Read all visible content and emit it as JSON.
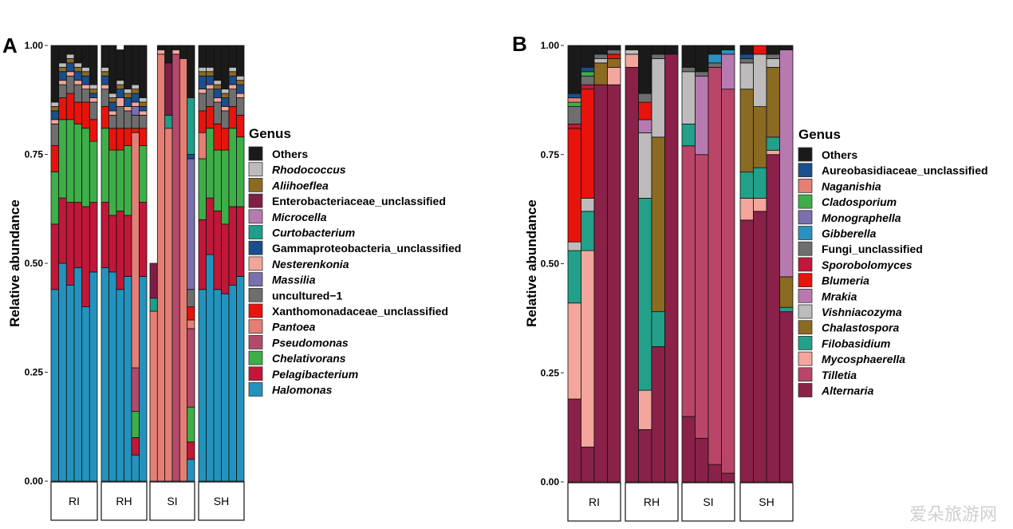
{
  "watermark": "爱朵旅游网",
  "chart_data": [
    {
      "panel": "A",
      "type": "bar",
      "stacked": true,
      "ylabel": "Relative abundance",
      "xlabel": "",
      "ylim": [
        0,
        1
      ],
      "yticks": [
        "0.00",
        "0.25",
        "0.50",
        "0.75",
        "1.00"
      ],
      "legend_title": "Genus",
      "legend_placement": "right",
      "groups": [
        "RI",
        "RH",
        "SI",
        "SH"
      ],
      "bars_per_group": 6,
      "series": [
        {
          "name": "Halomonas",
          "italic": true,
          "color": "#2393BE",
          "values": [
            0.44,
            0.5,
            0.45,
            0.49,
            0.4,
            0.48,
            0.49,
            0.48,
            0.44,
            0.47,
            0.06,
            0.47,
            0.0,
            0.0,
            0.0,
            0.0,
            0.0,
            0.05,
            0.44,
            0.52,
            0.44,
            0.43,
            0.45,
            0.47
          ]
        },
        {
          "name": "Pelagibacterium",
          "italic": true,
          "color": "#C11739",
          "values": [
            0.15,
            0.15,
            0.19,
            0.15,
            0.23,
            0.16,
            0.15,
            0.13,
            0.18,
            0.14,
            0.04,
            0.17,
            0.0,
            0.0,
            0.0,
            0.0,
            0.0,
            0.04,
            0.16,
            0.13,
            0.18,
            0.16,
            0.18,
            0.16
          ]
        },
        {
          "name": "Chelativorans",
          "italic": true,
          "color": "#3EAE49",
          "values": [
            0.12,
            0.18,
            0.19,
            0.18,
            0.18,
            0.14,
            0.17,
            0.15,
            0.14,
            0.16,
            0.06,
            0.13,
            0.0,
            0.0,
            0.0,
            0.0,
            0.0,
            0.08,
            0.14,
            0.16,
            0.14,
            0.17,
            0.18,
            0.16
          ]
        },
        {
          "name": "Pseudomonas",
          "italic": true,
          "color": "#B24A6C",
          "values": [
            0.0,
            0.0,
            0.0,
            0.0,
            0.0,
            0.0,
            0.0,
            0.0,
            0.0,
            0.0,
            0.1,
            0.0,
            0.0,
            0.0,
            0.0,
            0.98,
            0.0,
            0.18,
            0.0,
            0.0,
            0.0,
            0.0,
            0.0,
            0.0
          ]
        },
        {
          "name": "Pantoea",
          "italic": true,
          "color": "#E57E74",
          "values": [
            0.0,
            0.0,
            0.0,
            0.0,
            0.0,
            0.0,
            0.0,
            0.0,
            0.0,
            0.0,
            0.54,
            0.0,
            0.39,
            0.98,
            0.81,
            0.0,
            0.97,
            0.02,
            0.06,
            0.0,
            0.0,
            0.0,
            0.0,
            0.0
          ]
        },
        {
          "name": "Xanthomonadaceae_unclassified",
          "italic": false,
          "color": "#E8130C",
          "values": [
            0.06,
            0.05,
            0.06,
            0.05,
            0.06,
            0.05,
            0.05,
            0.05,
            0.05,
            0.04,
            0.01,
            0.04,
            0.0,
            0.0,
            0.0,
            0.0,
            0.0,
            0.03,
            0.05,
            0.05,
            0.06,
            0.05,
            0.05,
            0.05
          ]
        },
        {
          "name": "uncultured−1",
          "italic": false,
          "color": "#6E6E6E",
          "values": [
            0.05,
            0.03,
            0.04,
            0.04,
            0.03,
            0.04,
            0.04,
            0.03,
            0.05,
            0.04,
            0.03,
            0.03,
            0.0,
            0.0,
            0.0,
            0.0,
            0.0,
            0.04,
            0.04,
            0.04,
            0.05,
            0.04,
            0.04,
            0.04
          ]
        },
        {
          "name": "Massilia",
          "italic": true,
          "color": "#7A6FAF",
          "values": [
            0.0,
            0.0,
            0.0,
            0.0,
            0.0,
            0.0,
            0.0,
            0.0,
            0.0,
            0.0,
            0.02,
            0.0,
            0.0,
            0.0,
            0.0,
            0.0,
            0.0,
            0.3,
            0.0,
            0.0,
            0.0,
            0.0,
            0.0,
            0.0
          ]
        },
        {
          "name": "Nesterenkonia",
          "italic": true,
          "color": "#F2A69A",
          "values": [
            0.01,
            0.01,
            0.01,
            0.01,
            0.01,
            0.01,
            0.01,
            0.01,
            0.02,
            0.01,
            0.01,
            0.01,
            0.0,
            0.01,
            0.0,
            0.01,
            0.0,
            0.0,
            0.01,
            0.01,
            0.01,
            0.01,
            0.01,
            0.01
          ]
        },
        {
          "name": "Gammaproteobacteria_unclassified",
          "italic": false,
          "color": "#1A4E8C",
          "values": [
            0.02,
            0.02,
            0.02,
            0.02,
            0.02,
            0.01,
            0.02,
            0.02,
            0.02,
            0.02,
            0.02,
            0.01,
            0.0,
            0.0,
            0.0,
            0.0,
            0.0,
            0.01,
            0.03,
            0.02,
            0.02,
            0.02,
            0.02,
            0.02
          ]
        },
        {
          "name": "Curtobacterium",
          "italic": true,
          "color": "#1F9E8A",
          "values": [
            0.0,
            0.0,
            0.0,
            0.0,
            0.0,
            0.0,
            0.0,
            0.0,
            0.0,
            0.0,
            0.0,
            0.0,
            0.03,
            0.0,
            0.03,
            0.0,
            0.0,
            0.13,
            0.0,
            0.0,
            0.0,
            0.0,
            0.0,
            0.0
          ]
        },
        {
          "name": "Microcella",
          "italic": true,
          "color": "#B77AB0",
          "values": [
            0.0,
            0.0,
            0.0,
            0.0,
            0.0,
            0.0,
            0.0,
            0.0,
            0.0,
            0.0,
            0.0,
            0.0,
            0.0,
            0.0,
            0.0,
            0.0,
            0.0,
            0.0,
            0.0,
            0.0,
            0.0,
            0.0,
            0.0,
            0.0
          ]
        },
        {
          "name": "Enterobacteriaceae_unclassified",
          "italic": false,
          "color": "#7F1F46",
          "values": [
            0.0,
            0.0,
            0.0,
            0.0,
            0.0,
            0.0,
            0.0,
            0.0,
            0.0,
            0.0,
            0.0,
            0.0,
            0.08,
            0.0,
            0.12,
            0.0,
            0.0,
            0.0,
            0.0,
            0.0,
            0.0,
            0.0,
            0.0,
            0.0
          ]
        },
        {
          "name": "Aliihoeflea",
          "italic": true,
          "color": "#8B6A22",
          "values": [
            0.01,
            0.01,
            0.01,
            0.01,
            0.01,
            0.01,
            0.01,
            0.01,
            0.01,
            0.01,
            0.01,
            0.01,
            0.0,
            0.0,
            0.0,
            0.0,
            0.0,
            0.0,
            0.01,
            0.01,
            0.01,
            0.01,
            0.01,
            0.01
          ]
        },
        {
          "name": "Rhodococcus",
          "italic": true,
          "color": "#BDBBBC",
          "values": [
            0.01,
            0.01,
            0.01,
            0.01,
            0.01,
            0.01,
            0.01,
            0.01,
            0.01,
            0.01,
            0.01,
            0.01,
            0.0,
            0.0,
            0.0,
            0.0,
            0.0,
            0.0,
            0.01,
            0.01,
            0.01,
            0.01,
            0.01,
            0.01
          ]
        },
        {
          "name": "Others",
          "italic": false,
          "color": "#1A1A1A",
          "values": [
            0.13,
            0.04,
            0.02,
            0.09,
            0.05,
            0.09,
            0.07,
            0.11,
            0.07,
            0.1,
            0.09,
            0.12,
            0.0,
            0.01,
            0.04,
            0.01,
            0.03,
            0.12,
            0.05,
            0.05,
            0.08,
            0.1,
            0.05,
            0.07
          ]
        }
      ]
    },
    {
      "panel": "B",
      "type": "bar",
      "stacked": true,
      "ylabel": "Relative abundance",
      "xlabel": "",
      "ylim": [
        0,
        1
      ],
      "yticks": [
        "0.00",
        "0.25",
        "0.50",
        "0.75",
        "1.00"
      ],
      "legend_title": "Genus",
      "legend_placement": "right",
      "groups": [
        "RI",
        "RH",
        "SI",
        "SH"
      ],
      "bars_per_group": 4,
      "series": [
        {
          "name": "Alternaria",
          "italic": true,
          "color": "#8A2148",
          "values": [
            0.19,
            0.08,
            0.91,
            0.91,
            0.95,
            0.12,
            0.31,
            0.98,
            0.15,
            0.1,
            0.04,
            0.02,
            0.6,
            0.62,
            0.75,
            0.39
          ]
        },
        {
          "name": "Tilletia",
          "italic": true,
          "color": "#B94668",
          "values": [
            0.0,
            0.0,
            0.0,
            0.0,
            0.0,
            0.0,
            0.0,
            0.0,
            0.62,
            0.65,
            0.91,
            0.88,
            0.0,
            0.0,
            0.0,
            0.0
          ]
        },
        {
          "name": "Mycosphaerella",
          "italic": true,
          "color": "#F3A69C",
          "values": [
            0.22,
            0.45,
            0.0,
            0.04,
            0.03,
            0.09,
            0.0,
            0.0,
            0.0,
            0.0,
            0.0,
            0.0,
            0.05,
            0.03,
            0.01,
            0.0
          ]
        },
        {
          "name": "Filobasidium",
          "italic": true,
          "color": "#23A089",
          "values": [
            0.12,
            0.09,
            0.0,
            0.0,
            0.0,
            0.44,
            0.08,
            0.0,
            0.05,
            0.0,
            0.0,
            0.0,
            0.06,
            0.07,
            0.03,
            0.01
          ]
        },
        {
          "name": "Chalastospora",
          "italic": true,
          "color": "#8B6A22",
          "values": [
            0.0,
            0.0,
            0.05,
            0.02,
            0.0,
            0.0,
            0.4,
            0.0,
            0.0,
            0.0,
            0.0,
            0.0,
            0.19,
            0.14,
            0.16,
            0.07
          ]
        },
        {
          "name": "Vishniacozyma",
          "italic": true,
          "color": "#BDBBBC",
          "values": [
            0.02,
            0.03,
            0.01,
            0.0,
            0.01,
            0.15,
            0.18,
            0.0,
            0.12,
            0.0,
            0.0,
            0.0,
            0.06,
            0.12,
            0.02,
            0.0
          ]
        },
        {
          "name": "Mrakia",
          "italic": true,
          "color": "#B77AB0",
          "values": [
            0.0,
            0.0,
            0.0,
            0.0,
            0.0,
            0.03,
            0.0,
            0.0,
            0.0,
            0.18,
            0.0,
            0.08,
            0.0,
            0.0,
            0.0,
            0.52
          ]
        },
        {
          "name": "Blumeria",
          "italic": true,
          "color": "#E8130C",
          "values": [
            0.26,
            0.25,
            0.0,
            0.01,
            0.0,
            0.04,
            0.0,
            0.0,
            0.0,
            0.0,
            0.0,
            0.0,
            0.0,
            0.03,
            0.0,
            0.0
          ]
        },
        {
          "name": "Sporobolomyces",
          "italic": true,
          "color": "#C11739",
          "values": [
            0.01,
            0.01,
            0.0,
            0.0,
            0.0,
            0.0,
            0.0,
            0.0,
            0.0,
            0.0,
            0.0,
            0.0,
            0.0,
            0.0,
            0.0,
            0.0
          ]
        },
        {
          "name": "Fungi_unclassified",
          "italic": false,
          "color": "#6E6E6E",
          "values": [
            0.04,
            0.02,
            0.01,
            0.01,
            0.0,
            0.02,
            0.01,
            0.0,
            0.01,
            0.01,
            0.01,
            0.0,
            0.01,
            0.0,
            0.01,
            0.0
          ]
        },
        {
          "name": "Gibberella",
          "italic": true,
          "color": "#2A91BE",
          "values": [
            0.0,
            0.0,
            0.0,
            0.0,
            0.0,
            0.0,
            0.0,
            0.0,
            0.0,
            0.0,
            0.02,
            0.01,
            0.0,
            0.0,
            0.0,
            0.0
          ]
        },
        {
          "name": "Monographella",
          "italic": true,
          "color": "#7A6FAF",
          "values": [
            0.0,
            0.0,
            0.0,
            0.0,
            0.0,
            0.0,
            0.0,
            0.0,
            0.0,
            0.0,
            0.0,
            0.0,
            0.0,
            0.0,
            0.0,
            0.0
          ]
        },
        {
          "name": "Cladosporium",
          "italic": true,
          "color": "#3EAE49",
          "values": [
            0.01,
            0.01,
            0.0,
            0.0,
            0.0,
            0.0,
            0.0,
            0.0,
            0.0,
            0.0,
            0.0,
            0.0,
            0.0,
            0.0,
            0.0,
            0.0
          ]
        },
        {
          "name": "Naganishia",
          "italic": true,
          "color": "#E57E74",
          "values": [
            0.01,
            0.0,
            0.0,
            0.0,
            0.0,
            0.0,
            0.0,
            0.0,
            0.0,
            0.0,
            0.0,
            0.0,
            0.0,
            0.0,
            0.0,
            0.0
          ]
        },
        {
          "name": "Aureobasidiaceae_unclassified",
          "italic": false,
          "color": "#1A4E8C",
          "values": [
            0.01,
            0.01,
            0.0,
            0.0,
            0.0,
            0.0,
            0.0,
            0.0,
            0.0,
            0.0,
            0.0,
            0.0,
            0.01,
            0.0,
            0.0,
            0.0
          ]
        },
        {
          "name": "Others",
          "italic": false,
          "color": "#1A1A1A",
          "values": [
            0.11,
            0.05,
            0.02,
            0.01,
            0.01,
            0.11,
            0.02,
            0.02,
            0.05,
            0.06,
            0.02,
            0.01,
            0.02,
            0.02,
            0.02,
            0.01
          ]
        }
      ]
    }
  ]
}
